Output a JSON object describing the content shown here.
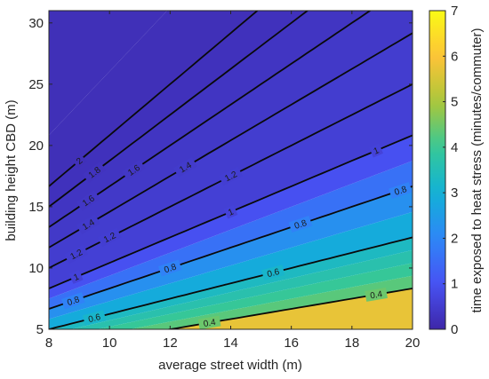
{
  "chart_data": {
    "type": "contour",
    "xlabel": "average street width (m)",
    "ylabel": "building height CBD (m)",
    "colorbar_label": "time exposed to heat stress (minutes/commuter)",
    "xlim": [
      8,
      20
    ],
    "ylim": [
      5,
      31
    ],
    "xticks": [
      8,
      10,
      12,
      14,
      16,
      18,
      20
    ],
    "yticks": [
      5,
      10,
      15,
      20,
      25,
      30
    ],
    "colorbar_lim": [
      0,
      7
    ],
    "colorbar_ticks": [
      0,
      1,
      2,
      3,
      4,
      5,
      6,
      7
    ],
    "colormap": "parula",
    "model": "time = 0.4 * (h / 5) * (12 / w)",
    "filled_levels": [
      0,
      0.4,
      0.45,
      0.5,
      0.55,
      0.6,
      0.7,
      0.8,
      0.9,
      1.0,
      1.2,
      1.4,
      1.6,
      1.8,
      2.0,
      2.5
    ],
    "contour_lines": [
      {
        "level": 0.4,
        "label": "0.4"
      },
      {
        "level": 0.6,
        "label": "0.6"
      },
      {
        "level": 0.8,
        "label": "0.8"
      },
      {
        "level": 1.0,
        "label": "1"
      },
      {
        "level": 1.2,
        "label": "1.2"
      },
      {
        "level": 1.4,
        "label": "1.4"
      },
      {
        "level": 1.6,
        "label": "1.6"
      },
      {
        "level": 1.8,
        "label": "1.8"
      },
      {
        "level": 2.0,
        "label": "2"
      }
    ],
    "contour_label_positions": [
      {
        "level": 0.4,
        "x": 13.3
      },
      {
        "level": 0.4,
        "x": 18.8
      },
      {
        "level": 0.6,
        "x": 9.5
      },
      {
        "level": 0.6,
        "x": 15.4
      },
      {
        "level": 0.8,
        "x": 8.8
      },
      {
        "level": 0.8,
        "x": 12.0
      },
      {
        "level": 0.8,
        "x": 16.3
      },
      {
        "level": 0.8,
        "x": 19.6
      },
      {
        "level": 1.0,
        "x": 8.9
      },
      {
        "level": 1.0,
        "x": 14.0
      },
      {
        "level": 1.0,
        "x": 18.8
      },
      {
        "level": 1.2,
        "x": 8.9
      },
      {
        "level": 1.2,
        "x": 10.0
      },
      {
        "level": 1.2,
        "x": 14.0
      },
      {
        "level": 1.4,
        "x": 9.3
      },
      {
        "level": 1.4,
        "x": 12.5
      },
      {
        "level": 1.6,
        "x": 9.3
      },
      {
        "level": 1.6,
        "x": 10.8
      },
      {
        "level": 1.8,
        "x": 9.5
      },
      {
        "level": 2.0,
        "x": 9.0
      }
    ]
  }
}
